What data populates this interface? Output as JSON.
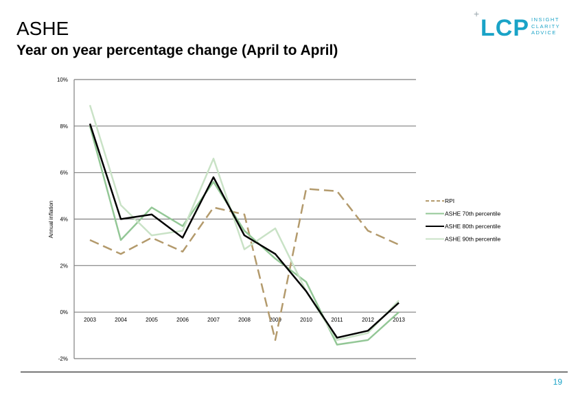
{
  "header": {
    "title": "ASHE",
    "subtitle": "Year on year percentage change (April to April)"
  },
  "logo": {
    "text": "LCP",
    "plus": "+",
    "tagline": [
      "INSIGHT",
      "CLARITY",
      "ADVICE"
    ],
    "color": "#1aa3c7"
  },
  "footer": {
    "page_number": "19"
  },
  "chart_data": {
    "type": "line",
    "title": "",
    "ylabel": "Annual inflation",
    "xlabel": "",
    "ylim": [
      -2,
      10
    ],
    "yticks": [
      -2,
      0,
      2,
      4,
      6,
      8,
      10
    ],
    "ytick_labels": [
      "-2%",
      "0%",
      "2%",
      "4%",
      "6%",
      "8%",
      "10%"
    ],
    "categories": [
      "2003",
      "2004",
      "2005",
      "2006",
      "2007",
      "2008",
      "2009",
      "2010",
      "2011",
      "2012",
      "2013"
    ],
    "grid": true,
    "legend_position": "right",
    "series": [
      {
        "name": "RPI",
        "color": "#b39a6c",
        "dashed": true,
        "width": 2.5,
        "values": [
          3.1,
          2.5,
          3.2,
          2.6,
          4.5,
          4.2,
          -1.2,
          5.3,
          5.2,
          3.5,
          2.9
        ]
      },
      {
        "name": "ASHE 70th percentile",
        "color": "#93c796",
        "dashed": false,
        "width": 2.5,
        "values": [
          8.0,
          3.1,
          4.5,
          3.7,
          5.6,
          3.5,
          2.3,
          1.3,
          -1.4,
          -1.2,
          0.0
        ]
      },
      {
        "name": "ASHE 80th percentile",
        "color": "#000000",
        "dashed": false,
        "width": 2.5,
        "values": [
          8.1,
          4.0,
          4.2,
          3.2,
          5.8,
          3.3,
          2.5,
          0.9,
          -1.1,
          -0.8,
          0.4
        ]
      },
      {
        "name": "ASHE 90th percentile",
        "color": "#c9e2c6",
        "dashed": false,
        "width": 2.5,
        "values": [
          8.9,
          4.6,
          3.3,
          3.5,
          6.6,
          2.7,
          3.6,
          0.9,
          -1.2,
          -0.9,
          0.5
        ]
      }
    ]
  }
}
